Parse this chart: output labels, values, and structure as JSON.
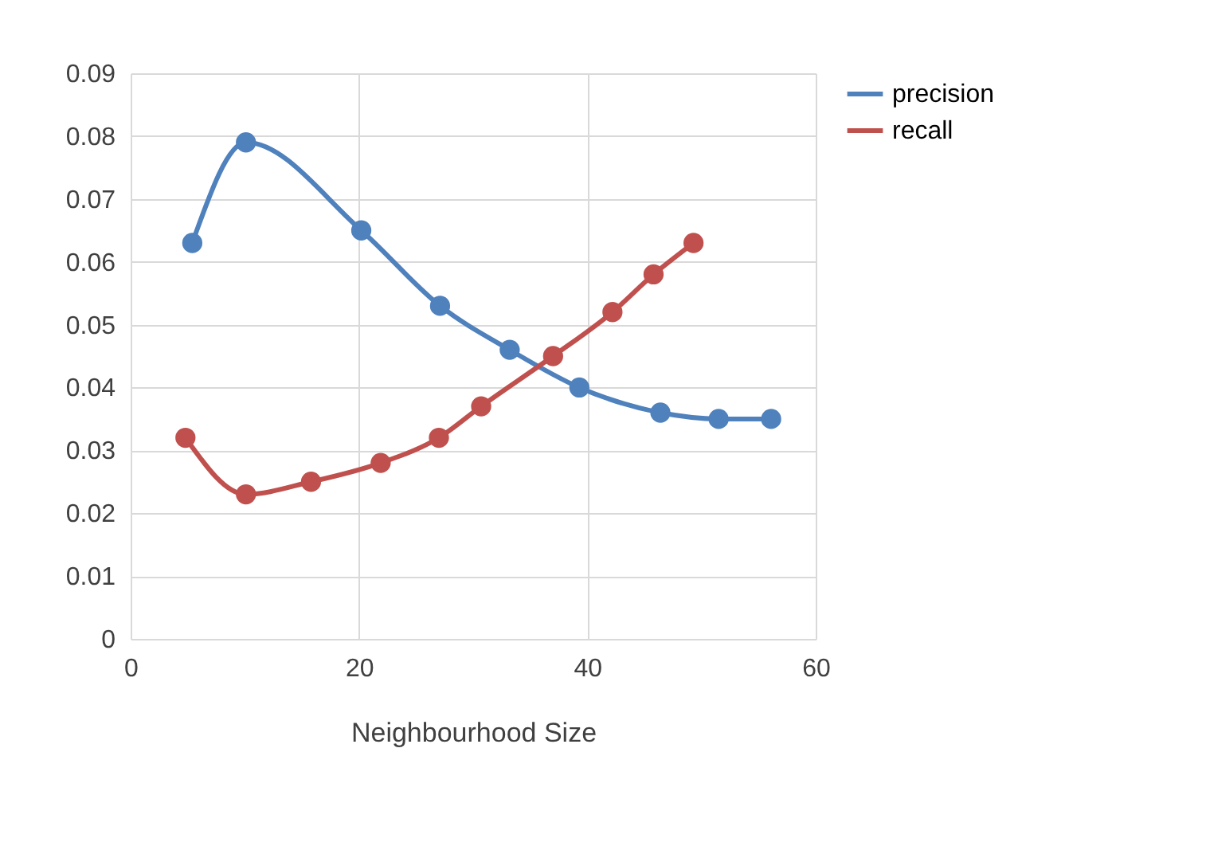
{
  "chart_data": {
    "type": "line",
    "xlabel": "Neighbourhood Size",
    "xlim": [
      0,
      60
    ],
    "xticks": [
      0,
      20,
      40,
      60
    ],
    "ylim": [
      0,
      0.09
    ],
    "yticks": [
      0,
      0.01,
      0.02,
      0.03,
      0.04,
      0.05,
      0.06,
      0.07,
      0.08,
      0.09
    ],
    "grid": true,
    "legend": "right",
    "marker": "circle",
    "line_style": "solid",
    "series": [
      {
        "name": "precision",
        "color": "#4f81bd",
        "x": [
          5.4,
          10.1,
          20.2,
          27.1,
          33.2,
          39.3,
          46.4,
          51.5,
          56.1
        ],
        "values": [
          0.063,
          0.079,
          0.065,
          0.053,
          0.046,
          0.04,
          0.036,
          0.035,
          0.035
        ]
      },
      {
        "name": "recall",
        "color": "#c0504d",
        "x": [
          4.8,
          10.1,
          15.8,
          21.9,
          27.0,
          30.7,
          37.0,
          42.2,
          45.8,
          49.3
        ],
        "values": [
          0.032,
          0.023,
          0.025,
          0.028,
          0.032,
          0.037,
          0.045,
          0.052,
          0.058,
          0.063
        ]
      }
    ]
  }
}
